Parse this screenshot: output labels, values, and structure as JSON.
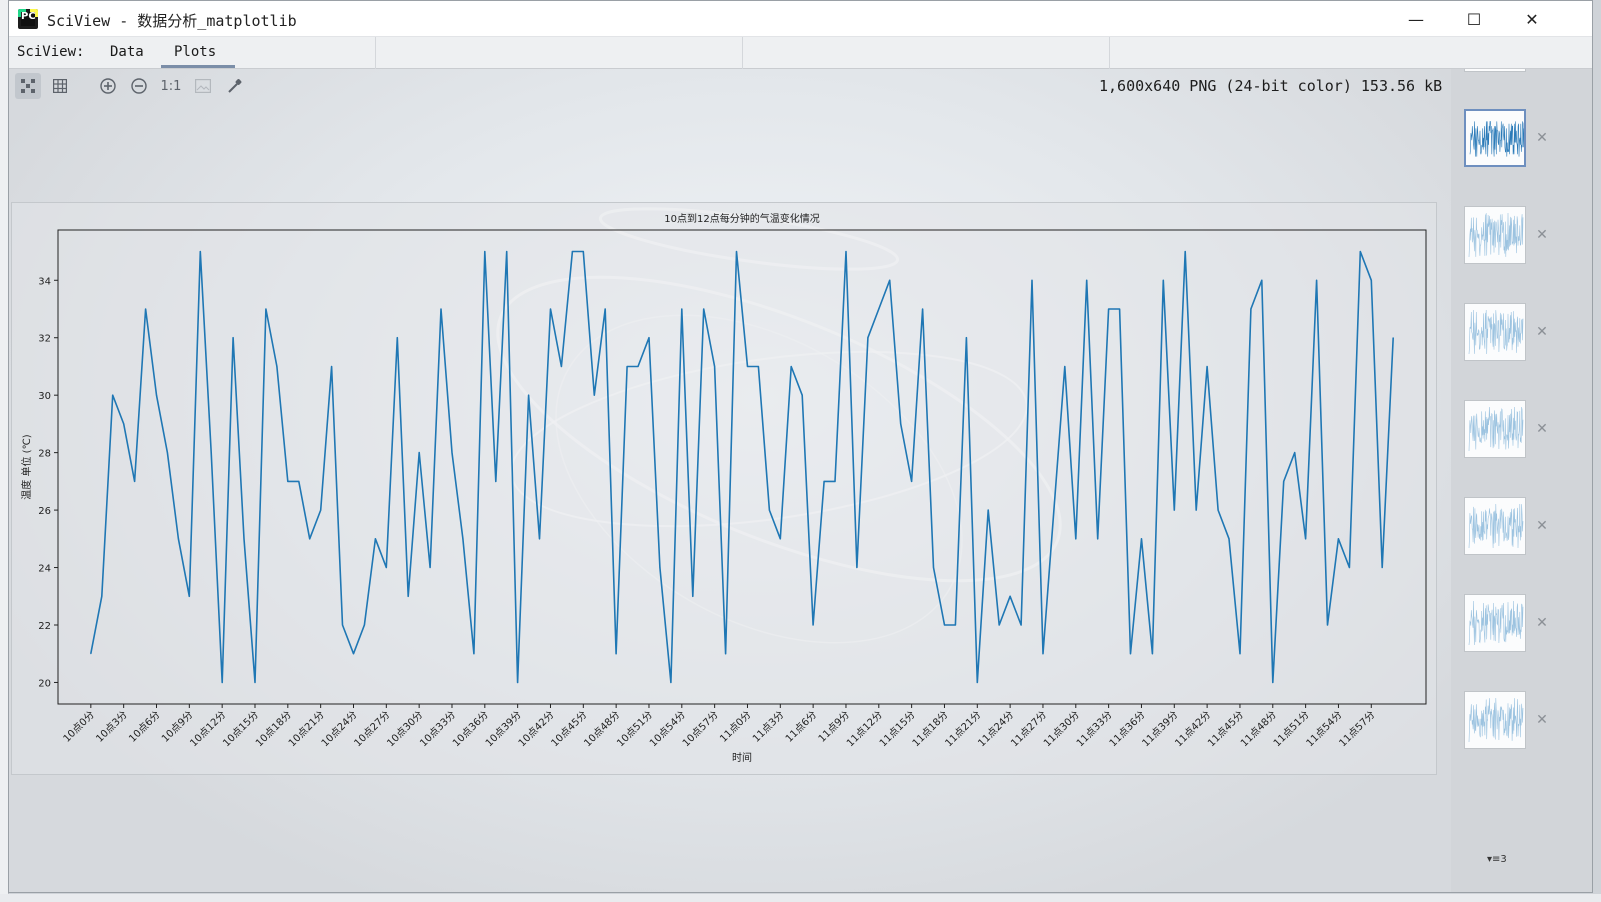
{
  "window": {
    "title": "SciView - 数据分析_matplotlib",
    "minimize_glyph": "—",
    "maximize_glyph": "☐",
    "close_glyph": "✕"
  },
  "menubar": {
    "sciview_label": "SciView:",
    "tabs": [
      {
        "label": "Data",
        "active": false
      },
      {
        "label": "Plots",
        "active": true
      }
    ]
  },
  "toolbar": {
    "buttons": [
      {
        "name": "fit-view",
        "icon": "grid-dots-icon",
        "active": true
      },
      {
        "name": "grid",
        "icon": "grid-icon",
        "active": false
      },
      {
        "name": "zoom-in",
        "icon": "zoom-in-icon",
        "active": false
      },
      {
        "name": "zoom-out",
        "icon": "zoom-out-icon",
        "active": false
      },
      {
        "name": "actual-size",
        "label": "1:1",
        "active": false
      },
      {
        "name": "background",
        "icon": "image-icon",
        "active": false
      },
      {
        "name": "color-picker",
        "icon": "eyedropper-icon",
        "active": false
      }
    ]
  },
  "image_info": "1,600x640 PNG (24-bit color) 153.56 kB",
  "plots_panel": {
    "count_label": "3",
    "thumbnail_count": 7,
    "selected_index": 0
  },
  "colors": {
    "line": "#1f77b4",
    "accent": "#6e8fbf"
  },
  "chart_data": {
    "type": "line",
    "title": "10点到12点每分钟的气温变化情况",
    "xlabel": "时间",
    "ylabel": "温度 单位 (℃)",
    "ylim": [
      19.25,
      35.75
    ],
    "yticks": [
      20,
      22,
      24,
      26,
      28,
      30,
      32,
      34
    ],
    "xtick_labels": [
      "10点0分",
      "10点3分",
      "10点6分",
      "10点9分",
      "10点12分",
      "10点15分",
      "10点18分",
      "10点21分",
      "10点24分",
      "10点27分",
      "10点30分",
      "10点33分",
      "10点36分",
      "10点39分",
      "10点42分",
      "10点45分",
      "10点48分",
      "10点51分",
      "10点54分",
      "10点57分",
      "11点0分",
      "11点3分",
      "11点6分",
      "11点9分",
      "11点12分",
      "11点15分",
      "11点18分",
      "11点21分",
      "11点24分",
      "11点27分",
      "11点30分",
      "11点33分",
      "11点36分",
      "11点39分",
      "11点42分",
      "11点45分",
      "11点48分",
      "11点51分",
      "11点54分",
      "11点57分"
    ],
    "grid": false,
    "series": [
      {
        "values": [
          21,
          23,
          30,
          29,
          27,
          33,
          30,
          28,
          25,
          23,
          35,
          28,
          20,
          32,
          25,
          20,
          33,
          31,
          27,
          27,
          25,
          26,
          31,
          22,
          21,
          22,
          25,
          24,
          32,
          23,
          28,
          24,
          33,
          28,
          25,
          21,
          35,
          27,
          35,
          20,
          30,
          25,
          33,
          31,
          35,
          35,
          30,
          33,
          21,
          31,
          31,
          32,
          24,
          20,
          33,
          23,
          33,
          31,
          21,
          35,
          31,
          31,
          26,
          25,
          31,
          30,
          22,
          27,
          27,
          35,
          24,
          32,
          33,
          34,
          29,
          27,
          33,
          24,
          22,
          22,
          32,
          20,
          26,
          22,
          23,
          22,
          34,
          21,
          26,
          31,
          25,
          34,
          25,
          33,
          33,
          21,
          25,
          21,
          34,
          26,
          35,
          26,
          31,
          26,
          25,
          21,
          33,
          34,
          20,
          27,
          28,
          25,
          34,
          22,
          25,
          24,
          35,
          34,
          24,
          32
        ]
      }
    ]
  }
}
